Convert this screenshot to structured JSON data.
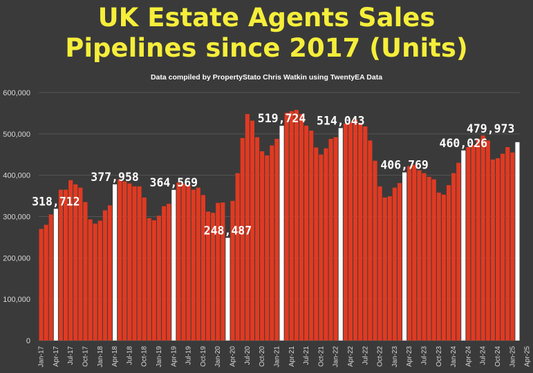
{
  "chart_data": {
    "type": "bar",
    "title_line1": "UK Estate Agents Sales",
    "title_line2": "Pipelines since 2017 (Units)",
    "subtitle": "Data compiled by PropertyStato Chris Watkin using TwentyEA Data",
    "ylim": [
      0,
      600000
    ],
    "yticks": [
      "0",
      "100,000",
      "200,000",
      "300,000",
      "400,000",
      "500,000",
      "600,000"
    ],
    "x_tick_labels": [
      "Jan-17",
      "Apr-17",
      "Jul-17",
      "Oct-17",
      "Jan-18",
      "Apr-18",
      "Jul-18",
      "Oct-18",
      "Jan-19",
      "Apr-19",
      "Jul-19",
      "Oct-19",
      "Jan-20",
      "Apr-20",
      "Jul-20",
      "Oct-20",
      "Jan-21",
      "Apr-21",
      "Jul-21",
      "Oct-21",
      "Jan-22",
      "Apr-22",
      "Jul-22",
      "Oct-22",
      "Jan-23",
      "Apr-23",
      "Jul-23",
      "Oct-23",
      "Jan-24",
      "Apr-24",
      "Jul-24",
      "Oct-24",
      "Jan-25",
      "Apr-25"
    ],
    "colors": {
      "bar": "#e03a22",
      "highlight": "#ffffff",
      "title": "#f5ee3a",
      "background": "#3a3a3a",
      "grid": "#555555"
    },
    "values": [
      270000,
      280000,
      305000,
      318712,
      365000,
      365000,
      388000,
      378000,
      370000,
      335000,
      293000,
      283000,
      290000,
      315000,
      327000,
      377958,
      390000,
      385000,
      380000,
      373000,
      373000,
      346000,
      296000,
      291000,
      302000,
      325000,
      331000,
      364569,
      382000,
      379000,
      375000,
      365000,
      370000,
      352000,
      312000,
      309000,
      333000,
      334000,
      248487,
      338000,
      405000,
      490000,
      548000,
      532000,
      492000,
      458000,
      448000,
      472000,
      488000,
      519724,
      551000,
      555000,
      558000,
      548000,
      520000,
      508000,
      467000,
      450000,
      465000,
      488000,
      492000,
      514043,
      525000,
      528000,
      535000,
      526000,
      518000,
      484000,
      435000,
      373000,
      346000,
      349000,
      370000,
      381000,
      406769,
      422000,
      425000,
      412000,
      405000,
      396000,
      390000,
      358000,
      353000,
      376000,
      405000,
      430000,
      460026,
      468000,
      473000,
      488000,
      496000,
      484000,
      438000,
      441000,
      452000,
      468000,
      455000,
      479973
    ],
    "highlighted_indices": [
      3,
      15,
      27,
      38,
      49,
      61,
      74,
      86,
      97
    ],
    "data_labels": [
      {
        "index": 3,
        "text": "318,712"
      },
      {
        "index": 15,
        "text": "377,958"
      },
      {
        "index": 27,
        "text": "364,569"
      },
      {
        "index": 38,
        "text": "248,487"
      },
      {
        "index": 49,
        "text": "519,724"
      },
      {
        "index": 61,
        "text": "514,043"
      },
      {
        "index": 74,
        "text": "406,769"
      },
      {
        "index": 86,
        "text": "460,026"
      },
      {
        "index": 97,
        "text": "479,973"
      }
    ]
  }
}
